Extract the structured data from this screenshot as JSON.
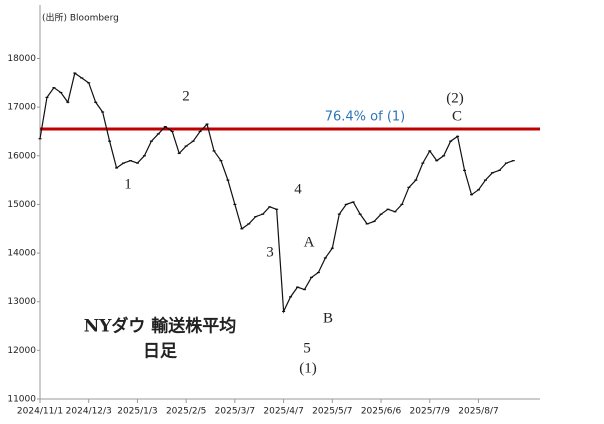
{
  "chart_data": {
    "type": "line",
    "source": "(出所) Bloomberg",
    "title": "NYダウ 輸送株平均",
    "subtitle": "日足",
    "categories": [
      "2024/11/1",
      null,
      null,
      null,
      null,
      null,
      null,
      "2024/12/3",
      null,
      null,
      null,
      null,
      null,
      null,
      "2025/1/3",
      null,
      null,
      null,
      null,
      null,
      null,
      "2025/2/5",
      null,
      null,
      null,
      null,
      null,
      null,
      "2025/3/7",
      null,
      null,
      null,
      null,
      null,
      null,
      "2025/4/7",
      null,
      null,
      null,
      null,
      null,
      null,
      "2025/5/7",
      null,
      null,
      null,
      null,
      null,
      null,
      "2025/6/6",
      null,
      null,
      null,
      null,
      null,
      null,
      "2025/7/9",
      null,
      null,
      null,
      null,
      null,
      null,
      "2025/8/7",
      null,
      null,
      null,
      null,
      null
    ],
    "series": [
      {
        "name": "NYダウ 輸送株平均",
        "color": "#111111",
        "values": [
          16350,
          17200,
          17400,
          17300,
          17100,
          17700,
          17600,
          17500,
          17100,
          16900,
          16300,
          15750,
          15850,
          15900,
          15850,
          16000,
          16300,
          16450,
          16600,
          16500,
          16050,
          16200,
          16300,
          16500,
          16650,
          16100,
          15900,
          15500,
          15000,
          14500,
          14600,
          14750,
          14800,
          14950,
          14900,
          12800,
          13100,
          13300,
          13250,
          13500,
          13600,
          13900,
          14100,
          14800,
          15000,
          15050,
          14800,
          14600,
          14650,
          14800,
          14900,
          14850,
          15000,
          15350,
          15500,
          15850,
          16100,
          15900,
          16000,
          16300,
          16400,
          15700,
          15200,
          15300,
          15500,
          15650,
          15700,
          15850,
          15900
        ]
      }
    ],
    "ylim": [
      11000,
      19100
    ],
    "yticks": [
      11000,
      12000,
      13000,
      14000,
      15000,
      16000,
      17000,
      18000
    ],
    "hline": {
      "value": 16550,
      "label": "76.4% of (1)",
      "color": "#c00000",
      "label_color": "#2e75b6"
    },
    "annotations": [
      "2",
      "1",
      "3",
      "4",
      "A",
      "B",
      "5",
      "(1)",
      "(2)",
      "C"
    ]
  }
}
